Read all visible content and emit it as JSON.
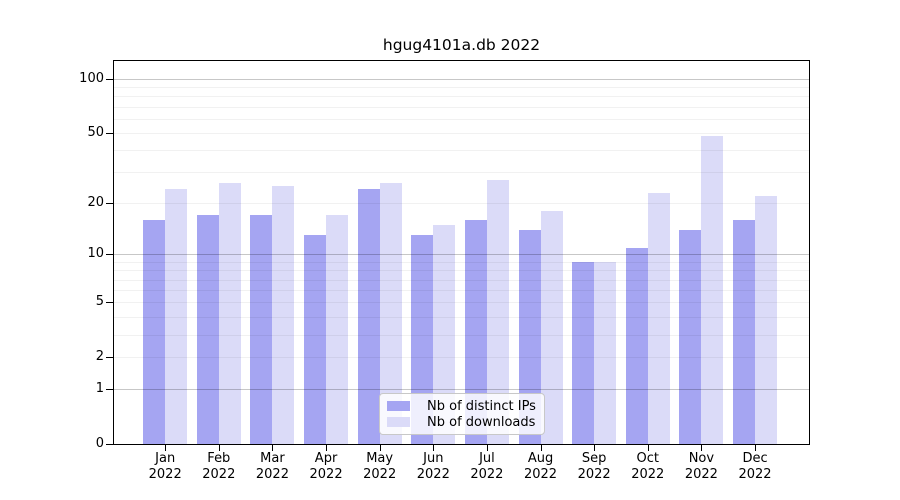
{
  "title": "hgug4101a.db 2022",
  "colors": {
    "bar_distinct_ips": "#a5a5f2",
    "bar_downloads": "#dbdbf8",
    "grid_minor": "rgba(0,0,0,0.055)",
    "grid_major": "rgba(0,0,0,0.22)",
    "spine": "#000000",
    "legend_border": "#c8c8c8",
    "background": "#ffffff"
  },
  "legend": {
    "items": [
      {
        "label": "Nb of distinct IPs",
        "color_key": "bar_distinct_ips"
      },
      {
        "label": "Nb of downloads",
        "color_key": "bar_downloads"
      }
    ]
  },
  "chart_data": {
    "type": "bar",
    "title": "hgug4101a.db 2022",
    "categories": [
      "Jan 2022",
      "Feb 2022",
      "Mar 2022",
      "Apr 2022",
      "May 2022",
      "Jun 2022",
      "Jul 2022",
      "Aug 2022",
      "Sep 2022",
      "Oct 2022",
      "Nov 2022",
      "Dec 2022"
    ],
    "series": [
      {
        "name": "Nb of distinct IPs",
        "color": "#a5a5f2",
        "values": [
          16,
          17,
          17,
          13,
          24,
          13,
          16,
          14,
          9,
          11,
          14,
          16
        ]
      },
      {
        "name": "Nb of downloads",
        "color": "#dbdbf8",
        "values": [
          24,
          26,
          25,
          17,
          26,
          15,
          27,
          18,
          9,
          23,
          48,
          22
        ]
      }
    ],
    "yticks": [
      0,
      1,
      2,
      5,
      10,
      20,
      50,
      100
    ],
    "minor_gridlines": [
      2,
      3,
      4,
      5,
      6,
      7,
      8,
      9,
      20,
      30,
      40,
      50,
      60,
      70,
      80,
      90
    ],
    "major_gridlines": [
      1,
      10,
      100
    ],
    "scale": "log1p",
    "ylim": [
      0,
      126
    ],
    "xlabel": "",
    "ylabel": "",
    "grid": true,
    "legend_position": "lower center"
  }
}
